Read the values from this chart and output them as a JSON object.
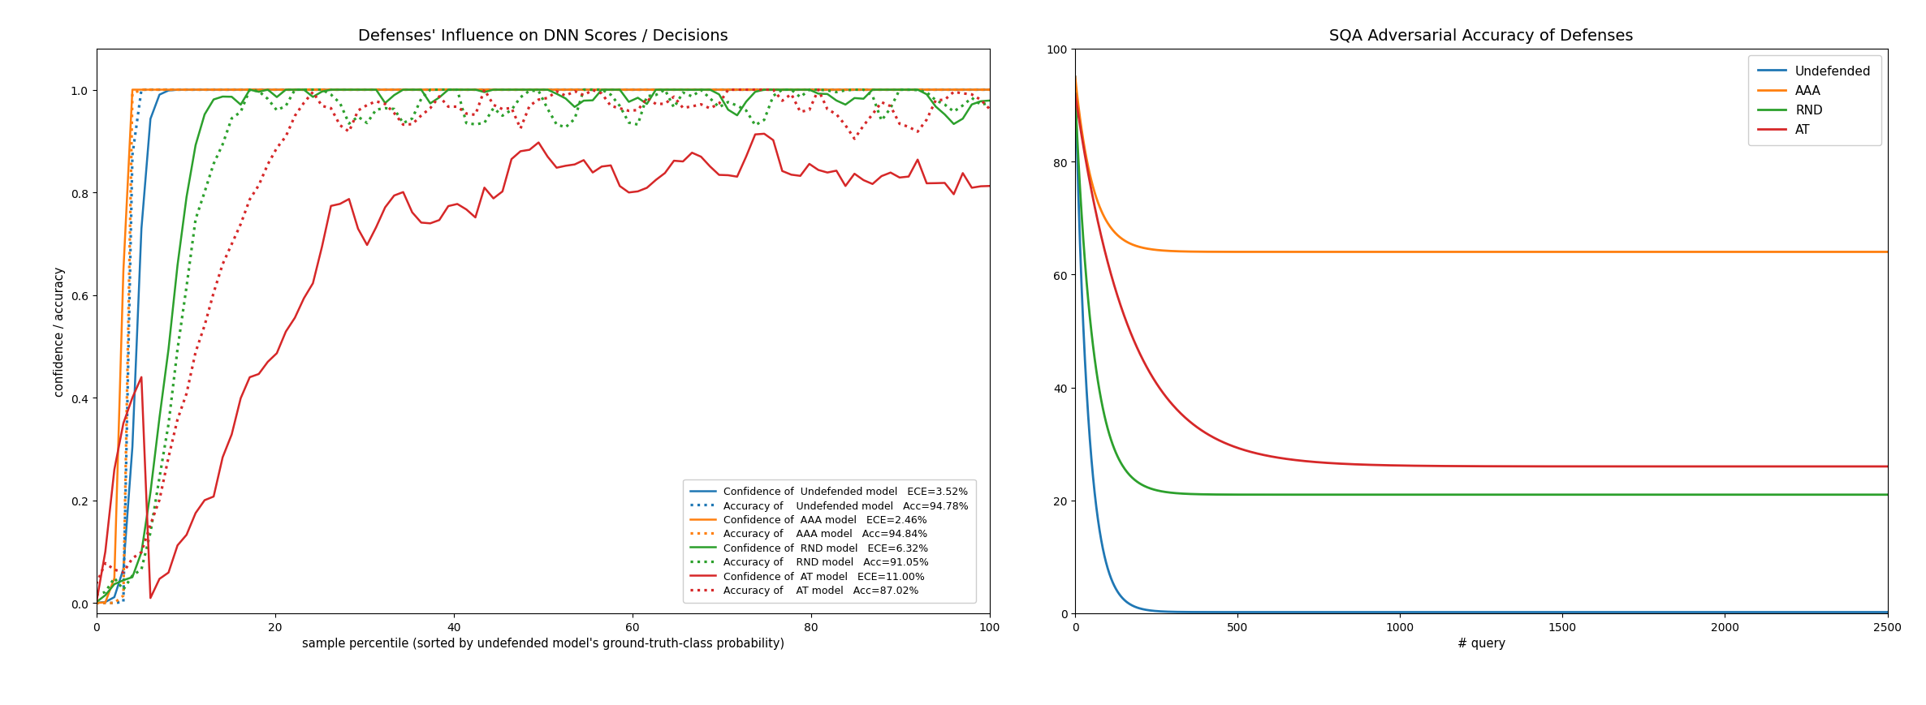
{
  "left_title": "Defenses' Influence on DNN Scores / Decisions",
  "left_xlabel": "sample percentile (sorted by undefended model's ground-truth-class probability)",
  "left_ylabel": "confidence / accuracy",
  "left_xlim": [
    0,
    100
  ],
  "left_ylim": [
    -0.02,
    1.08
  ],
  "right_title": "SQA Adversarial Accuracy of Defenses",
  "right_xlabel": "# query",
  "right_ylabel": "",
  "right_xlim": [
    0,
    2500
  ],
  "right_ylim": [
    0,
    100
  ],
  "colors": {
    "blue": "#1f77b4",
    "orange": "#ff7f0e",
    "green": "#2ca02c",
    "red": "#d62728"
  },
  "legend_entries": [
    {
      "label": "Confidence of  Undefended model   ECE=3.52%",
      "color": "#1f77b4",
      "linestyle": "solid"
    },
    {
      "label": "Accuracy of    Undefended model   Acc=94.78%",
      "color": "#1f77b4",
      "linestyle": "dotted"
    },
    {
      "label": "Confidence of  AAA model   ECE=2.46%",
      "color": "#ff7f0e",
      "linestyle": "solid"
    },
    {
      "label": "Accuracy of    AAA model   Acc=94.84%",
      "color": "#ff7f0e",
      "linestyle": "dotted"
    },
    {
      "label": "Confidence of  RND model   ECE=6.32%",
      "color": "#2ca02c",
      "linestyle": "solid"
    },
    {
      "label": "Accuracy of    RND model   Acc=91.05%",
      "color": "#2ca02c",
      "linestyle": "dotted"
    },
    {
      "label": "Confidence of  AT model   ECE=11.00%",
      "color": "#d62728",
      "linestyle": "solid"
    },
    {
      "label": "Accuracy of    AT model   Acc=87.02%",
      "color": "#d62728",
      "linestyle": "dotted"
    }
  ],
  "right_legend_entries": [
    {
      "label": "Undefended",
      "color": "#1f77b4"
    },
    {
      "label": "AAA",
      "color": "#ff7f0e"
    },
    {
      "label": "RND",
      "color": "#2ca02c"
    },
    {
      "label": "AT",
      "color": "#d62728"
    }
  ]
}
